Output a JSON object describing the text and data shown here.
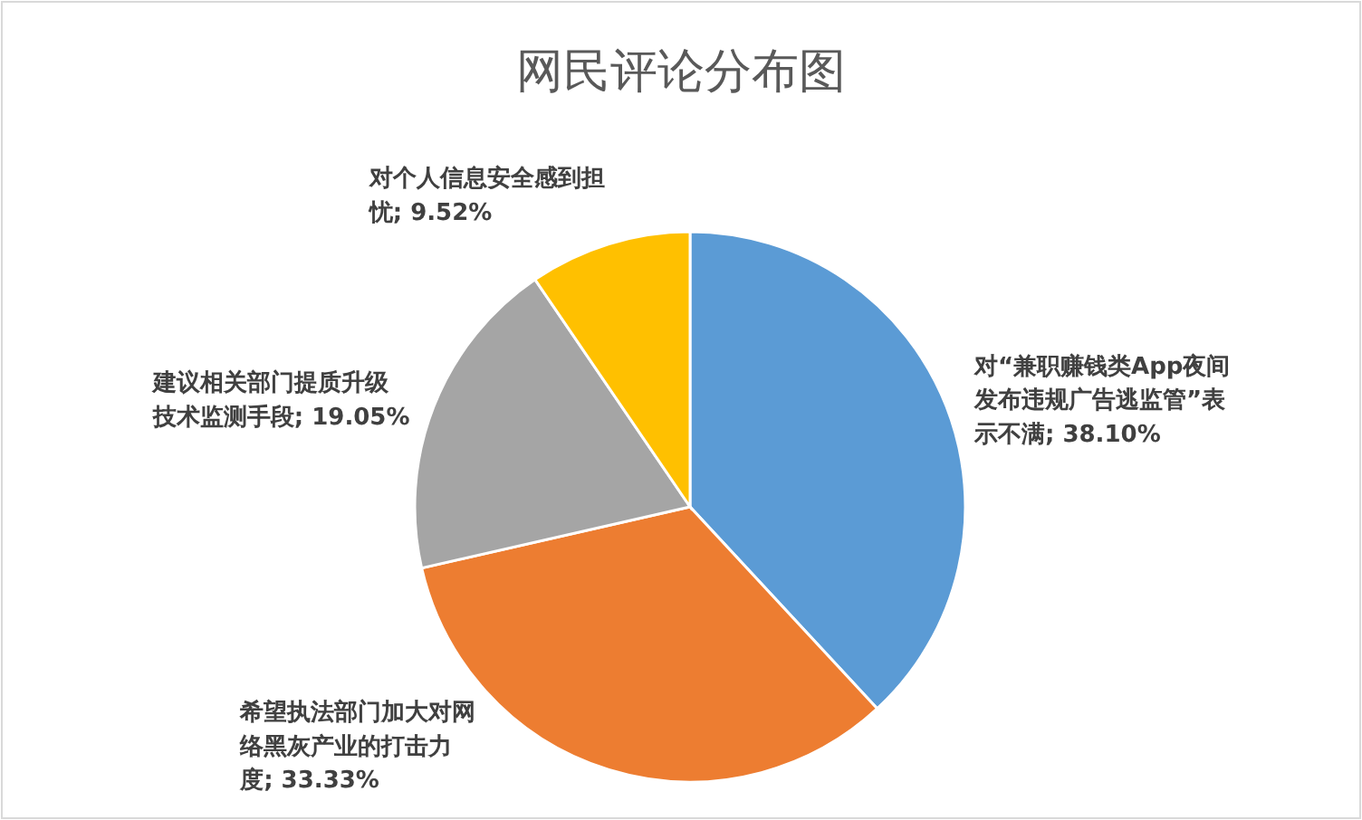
{
  "chart_data": {
    "type": "pie",
    "title": "网民评论分布图",
    "categories": [
      "对“兼职赚钱类App夜间发布违规广告逃监管”表示不满",
      "希望执法部门加大对网络黑灰产业的打击力度",
      "建议相关部门提质升级技术监测手段",
      "对个人信息安全感到担忧"
    ],
    "values": [
      38.1,
      33.33,
      19.05,
      9.52
    ],
    "value_labels": [
      "38.10%",
      "33.33%",
      "19.05%",
      "9.52%"
    ],
    "colors": [
      "#5b9bd5",
      "#ed7d31",
      "#a5a5a5",
      "#ffc000"
    ]
  }
}
